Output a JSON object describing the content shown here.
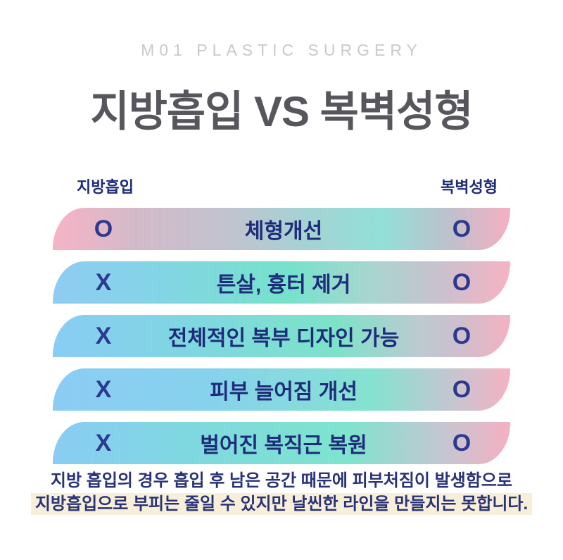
{
  "header": {
    "eyebrow": "M01 PLASTIC SURGERY",
    "title": "지방흡입 VS 복벽성형"
  },
  "comparison": {
    "left_label": "지방흡입",
    "right_label": "복벽성형",
    "rows": [
      {
        "left_mark": "O",
        "feature": "체형개선",
        "right_mark": "O"
      },
      {
        "left_mark": "X",
        "feature": "튼살, 흉터 제거",
        "right_mark": "O"
      },
      {
        "left_mark": "X",
        "feature": "전체적인 복부 디자인 가능",
        "right_mark": "O"
      },
      {
        "left_mark": "X",
        "feature": "피부 늘어짐 개선",
        "right_mark": "O"
      },
      {
        "left_mark": "X",
        "feature": "벌어진 복직근 복원",
        "right_mark": "O"
      }
    ]
  },
  "footer": {
    "line1": "지방 흡입의 경우 흡입 후 남은 공간 때문에 피부처짐이 발생함으로",
    "line2": "지방흡입으로 부피는 줄일 수 있지만 날씬한 라인을 만들지는 못합니다."
  },
  "colors": {
    "navy_text": "#1e2c7a",
    "mark_navy": "#2b3a8f",
    "title_gray": "#56565c",
    "eyebrow_gray": "#c9c9cc",
    "highlight_cream": "#f8efda",
    "row_pink": "#f6b3c4",
    "row_blue": "#8fccf3",
    "row_teal": "#7ae3cb",
    "background": "#ffffff"
  }
}
